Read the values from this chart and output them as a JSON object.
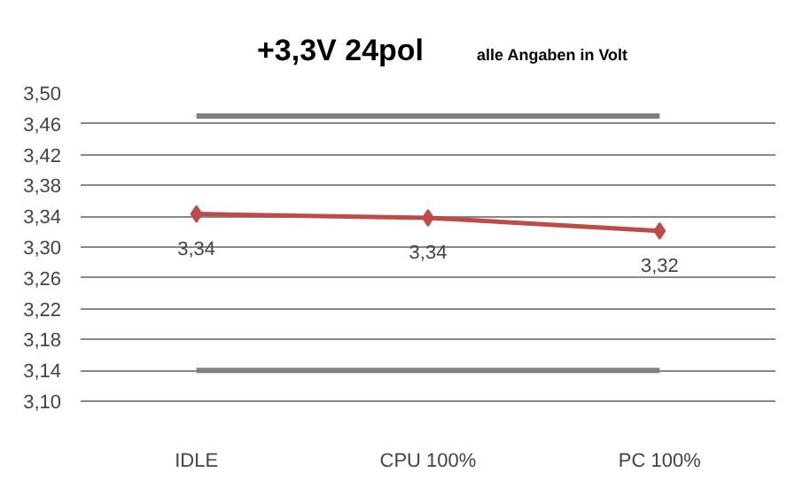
{
  "chart_data": {
    "type": "line",
    "title": "+3,3V  24pol",
    "subtitle": "alle Angaben in Volt",
    "categories": [
      "IDLE",
      "CPU 100%",
      "PC 100%"
    ],
    "series": [
      {
        "color": "#be4b48",
        "values": [
          3.343,
          3.338,
          3.321
        ],
        "marker": "diamond",
        "value_labels": [
          "3,34",
          "3,34",
          "3,32"
        ]
      },
      {
        "color": "#808080",
        "values": [
          3.47,
          3.47,
          3.47
        ],
        "marker": "none"
      },
      {
        "color": "#808080",
        "values": [
          3.14,
          3.14,
          3.14
        ],
        "marker": "none"
      }
    ],
    "ylim": [
      3.1,
      3.5
    ],
    "yticks": [
      {
        "value": 3.1,
        "label": "3,10"
      },
      {
        "value": 3.14,
        "label": "3,14"
      },
      {
        "value": 3.18,
        "label": "3,18"
      },
      {
        "value": 3.22,
        "label": "3,22"
      },
      {
        "value": 3.26,
        "label": "3,26"
      },
      {
        "value": 3.3,
        "label": "3,30"
      },
      {
        "value": 3.34,
        "label": "3,34"
      },
      {
        "value": 3.38,
        "label": "3,38"
      },
      {
        "value": 3.42,
        "label": "3,42"
      },
      {
        "value": 3.46,
        "label": "3,46"
      },
      {
        "value": 3.5,
        "label": "3,50"
      }
    ],
    "grid": "y"
  }
}
